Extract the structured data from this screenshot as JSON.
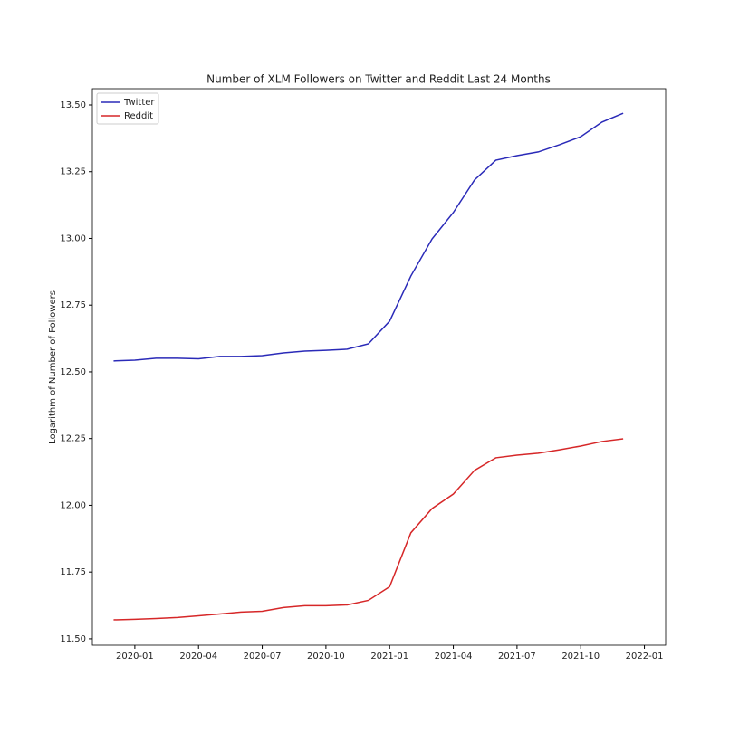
{
  "chart_data": {
    "type": "line",
    "title": "Number of XLM Followers on Twitter and Reddit Last 24 Months",
    "ylabel": "Logarithm of Number of Followers",
    "x": [
      "2019-12",
      "2020-01",
      "2020-02",
      "2020-03",
      "2020-04",
      "2020-05",
      "2020-06",
      "2020-07",
      "2020-08",
      "2020-09",
      "2020-10",
      "2020-11",
      "2020-12",
      "2021-01",
      "2021-02",
      "2021-03",
      "2021-04",
      "2021-05",
      "2021-06",
      "2021-07",
      "2021-08",
      "2021-09",
      "2021-10",
      "2021-11",
      "2021-12"
    ],
    "series": [
      {
        "name": "Twitter",
        "color": "#2a2ab8",
        "values": [
          12.541,
          12.544,
          12.551,
          12.551,
          12.549,
          12.558,
          12.558,
          12.561,
          12.571,
          12.578,
          12.581,
          12.585,
          12.605,
          12.69,
          12.859,
          12.998,
          13.097,
          13.219,
          13.293,
          13.31,
          13.324,
          13.351,
          13.381,
          13.436,
          13.469
        ]
      },
      {
        "name": "Reddit",
        "color": "#d62728",
        "values": [
          11.571,
          11.573,
          11.576,
          11.58,
          11.586,
          11.593,
          11.6,
          11.603,
          11.617,
          11.624,
          11.624,
          11.627,
          11.644,
          11.695,
          11.897,
          11.988,
          12.042,
          12.131,
          12.178,
          12.188,
          12.195,
          12.208,
          12.222,
          12.239,
          12.249
        ]
      }
    ],
    "xlim": [
      "2019-11",
      "2022-02"
    ],
    "xticks": [
      "2020-01",
      "2020-04",
      "2020-07",
      "2020-10",
      "2021-01",
      "2021-04",
      "2021-07",
      "2021-10",
      "2022-01"
    ],
    "ylim": [
      11.476,
      13.561
    ],
    "yticks": [
      {
        "value": 11.5,
        "label": "11.50"
      },
      {
        "value": 11.75,
        "label": "11.75"
      },
      {
        "value": 12,
        "label": "12.00"
      },
      {
        "value": 12.25,
        "label": "12.25"
      },
      {
        "value": 12.5,
        "label": "12.50"
      },
      {
        "value": 12.75,
        "label": "12.75"
      },
      {
        "value": 13,
        "label": "13.00"
      },
      {
        "value": 13.25,
        "label": "13.25"
      },
      {
        "value": 13.5,
        "label": "13.50"
      }
    ],
    "legend": "upper left"
  }
}
